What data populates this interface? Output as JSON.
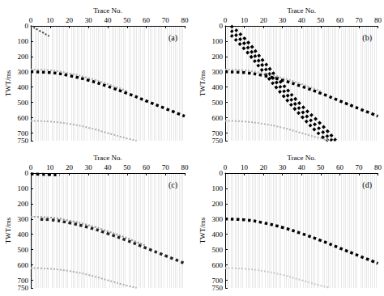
{
  "chart_data": [
    {
      "type": "line",
      "title": "(a)",
      "x_label": "Trace No.",
      "y_label": "TWT/ms",
      "xlim": [
        0,
        80
      ],
      "xticks": [
        0,
        10,
        20,
        30,
        40,
        50,
        60,
        70,
        80
      ],
      "ylim": [
        0,
        750
      ],
      "yticks": [
        0,
        100,
        200,
        300,
        400,
        500,
        600,
        700
      ],
      "grid": true,
      "series": [
        {
          "color": "#000000",
          "x": [
            0,
            10,
            20,
            30,
            40,
            50,
            60,
            70,
            80
          ],
          "values": [
            300,
            305,
            325,
            355,
            395,
            440,
            490,
            540,
            590
          ]
        },
        {
          "color": "#b0b0b0",
          "x": [
            0,
            10,
            20,
            30,
            40,
            50
          ],
          "values": [
            285,
            290,
            310,
            340,
            380,
            425
          ]
        },
        {
          "color": "#b0b0b0",
          "x": [
            0,
            10,
            20,
            30,
            40,
            50,
            55
          ],
          "values": [
            620,
            625,
            640,
            665,
            700,
            735,
            750
          ]
        },
        {
          "color": "#444444",
          "x": [
            0,
            5,
            10
          ],
          "values": [
            0,
            35,
            70
          ]
        }
      ]
    },
    {
      "type": "line",
      "title": "(b)",
      "x_label": "Trace No.",
      "y_label": "TWT/ms",
      "xlim": [
        0,
        80
      ],
      "xticks": [
        0,
        10,
        20,
        30,
        40,
        50,
        60,
        70,
        80
      ],
      "ylim": [
        0,
        750
      ],
      "yticks": [
        0,
        100,
        200,
        300,
        400,
        500,
        600,
        700
      ],
      "grid": true,
      "series": [
        {
          "color": "#000000",
          "x": [
            3,
            10,
            20,
            30,
            40,
            50,
            58
          ],
          "values": [
            0,
            80,
            230,
            380,
            520,
            640,
            750
          ]
        },
        {
          "color": "#000000",
          "x": [
            3,
            10,
            20,
            30,
            40,
            50,
            56
          ],
          "values": [
            30,
            115,
            265,
            415,
            555,
            680,
            750
          ]
        },
        {
          "color": "#000000",
          "x": [
            3,
            10,
            20,
            30,
            40,
            50,
            54
          ],
          "values": [
            60,
            150,
            300,
            450,
            590,
            715,
            750
          ]
        },
        {
          "color": "#000000",
          "x": [
            0,
            10,
            20,
            30,
            40,
            50,
            60,
            70,
            80
          ],
          "values": [
            300,
            305,
            325,
            355,
            395,
            440,
            490,
            540,
            590
          ]
        },
        {
          "color": "#b0b0b0",
          "x": [
            0,
            10,
            20,
            30,
            40,
            50
          ],
          "values": [
            285,
            290,
            310,
            340,
            380,
            425
          ]
        },
        {
          "color": "#b0b0b0",
          "x": [
            0,
            10,
            20,
            30,
            40,
            50,
            55
          ],
          "values": [
            620,
            625,
            640,
            665,
            700,
            735,
            750
          ]
        }
      ]
    },
    {
      "type": "line",
      "title": "(c)",
      "x_label": "Trace No.",
      "y_label": "TWT/ms",
      "xlim": [
        0,
        80
      ],
      "xticks": [
        0,
        10,
        20,
        30,
        40,
        50,
        60,
        70,
        80
      ],
      "ylim": [
        0,
        750
      ],
      "yticks": [
        0,
        100,
        200,
        300,
        400,
        500,
        600,
        700
      ],
      "grid": true,
      "series": [
        {
          "color": "#222222",
          "x": [
            5,
            10,
            20,
            30,
            40,
            50,
            60,
            70,
            80
          ],
          "values": [
            302,
            305,
            325,
            355,
            395,
            440,
            490,
            540,
            590
          ]
        },
        {
          "color": "#999999",
          "x": [
            0,
            10,
            20,
            30,
            40,
            50,
            60
          ],
          "values": [
            285,
            290,
            310,
            340,
            380,
            425,
            475
          ]
        },
        {
          "color": "#b0b0b0",
          "x": [
            0,
            10,
            20,
            30,
            40,
            50,
            55
          ],
          "values": [
            620,
            625,
            640,
            665,
            700,
            735,
            750
          ]
        },
        {
          "color": "#000000",
          "x": [
            0,
            5,
            10,
            15
          ],
          "values": [
            5,
            8,
            10,
            12
          ]
        }
      ]
    },
    {
      "type": "line",
      "title": "(d)",
      "x_label": "Trace No.",
      "y_label": "TWT/ms",
      "xlim": [
        0,
        80
      ],
      "xticks": [
        0,
        10,
        20,
        30,
        40,
        50,
        60,
        70,
        80
      ],
      "ylim": [
        0,
        750
      ],
      "yticks": [
        0,
        100,
        200,
        300,
        400,
        500,
        600,
        700
      ],
      "grid": true,
      "series": [
        {
          "color": "#000000",
          "x": [
            0,
            10,
            20,
            30,
            40,
            50,
            60,
            70,
            80
          ],
          "values": [
            300,
            305,
            325,
            355,
            395,
            440,
            490,
            540,
            590
          ]
        },
        {
          "color": "#c8c8c8",
          "x": [
            0,
            10,
            20,
            30,
            40,
            50,
            55
          ],
          "values": [
            620,
            625,
            640,
            665,
            700,
            735,
            750
          ]
        }
      ]
    }
  ]
}
